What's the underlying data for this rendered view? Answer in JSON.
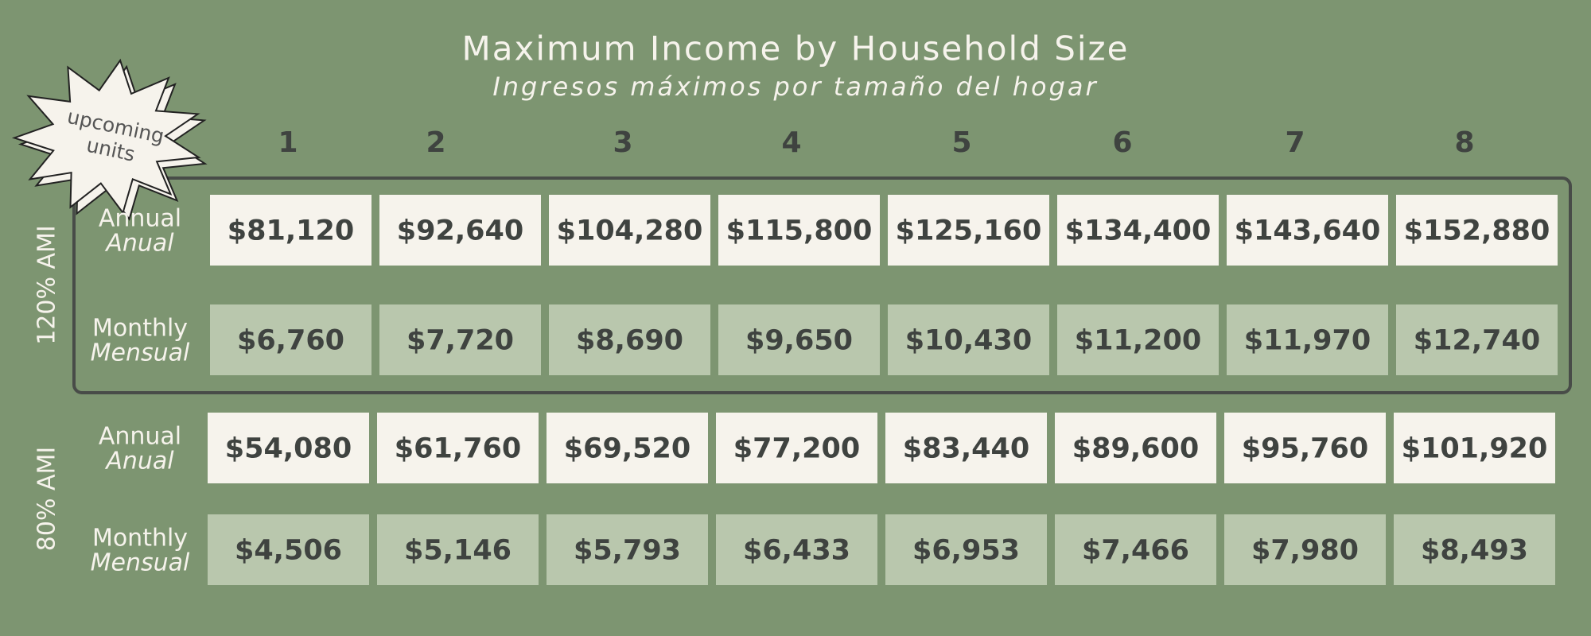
{
  "title": "Maximum Income by Household Size",
  "subtitle": "Ingresos máximos por tamaño del hogar",
  "badge": [
    "upcoming",
    "units"
  ],
  "household_sizes": [
    "1",
    "2",
    "3",
    "4",
    "5",
    "6",
    "7",
    "8"
  ],
  "groups": [
    {
      "label": "120% AMI",
      "rows": [
        {
          "label": "Annual",
          "label_es": "Anual",
          "values": [
            "$81,120",
            "$92,640",
            "$104,280",
            "$115,800",
            "$125,160",
            "$134,400",
            "$143,640",
            "$152,880"
          ]
        },
        {
          "label": "Monthly",
          "label_es": "Mensual",
          "values": [
            "$6,760",
            "$7,720",
            "$8,690",
            "$9,650",
            "$10,430",
            "$11,200",
            "$11,970",
            "$12,740"
          ]
        }
      ]
    },
    {
      "label": "80% AMI",
      "rows": [
        {
          "label": "Annual",
          "label_es": "Anual",
          "values": [
            "$54,080",
            "$61,760",
            "$69,520",
            "$77,200",
            "$83,440",
            "$89,600",
            "$95,760",
            "$101,920"
          ]
        },
        {
          "label": "Monthly",
          "label_es": "Mensual",
          "values": [
            "$4,506",
            "$5,146",
            "$5,793",
            "$6,433",
            "$6,953",
            "$7,466",
            "$7,980",
            "$8,493"
          ]
        }
      ]
    }
  ]
}
